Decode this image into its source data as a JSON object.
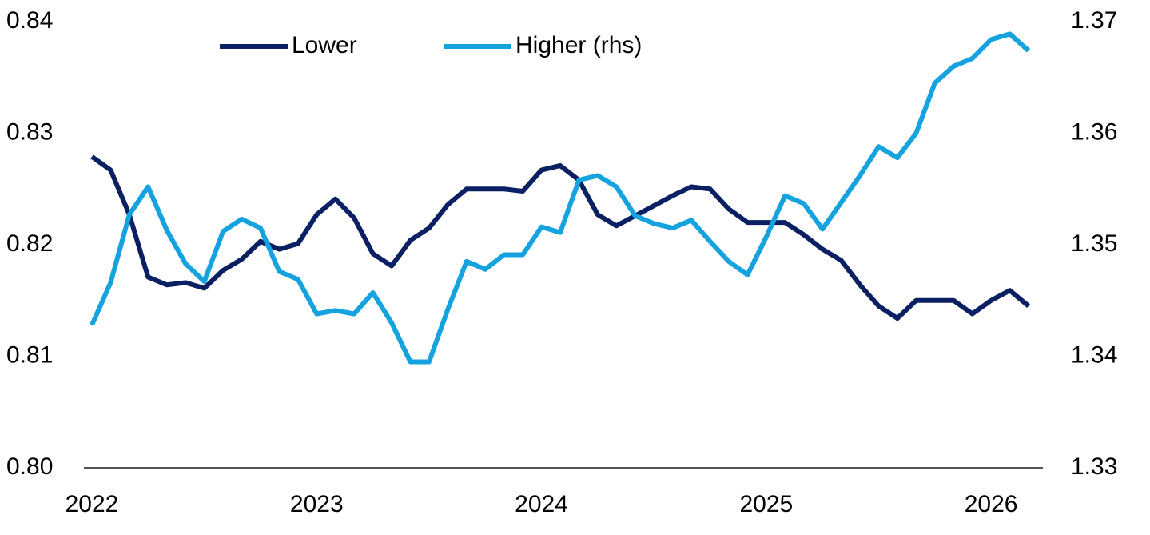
{
  "chart_data": {
    "type": "line",
    "categories": [
      "2022",
      null,
      null,
      null,
      null,
      null,
      null,
      null,
      null,
      null,
      null,
      null,
      "2023",
      null,
      null,
      null,
      null,
      null,
      null,
      null,
      null,
      null,
      null,
      null,
      "2024",
      null,
      null,
      null,
      null,
      null,
      null,
      null,
      null,
      null,
      null,
      null,
      "2025",
      null,
      null,
      null,
      null,
      null,
      null,
      null,
      null,
      null,
      null,
      null,
      "2026",
      null,
      null
    ],
    "ylim": [
      0.8,
      0.84
    ],
    "yticks": [
      {
        "value": 0.8,
        "label": "0.80"
      },
      0.81,
      0.82,
      0.83,
      0.84
    ],
    "y2lim": [
      1.33,
      1.37
    ],
    "y2ticks": [
      1.33,
      1.34,
      1.35,
      1.36,
      1.37
    ],
    "legend": "top",
    "series": [
      {
        "name": "Lower",
        "color": "#0b1f63",
        "values": [
          0.8279,
          0.8267,
          0.8227,
          0.8171,
          0.8164,
          0.8166,
          0.8161,
          0.8177,
          0.8187,
          0.8203,
          0.8196,
          0.8201,
          0.8227,
          0.8241,
          0.8224,
          0.8192,
          0.8181,
          0.8204,
          0.8215,
          0.8236,
          0.825,
          0.825,
          0.825,
          0.8248,
          0.8267,
          0.8271,
          0.8258,
          0.8227,
          0.8217,
          0.8226,
          0.8235,
          0.8244,
          0.8252,
          0.825,
          0.8232,
          0.822,
          0.822,
          0.822,
          0.8209,
          0.8196,
          0.8186,
          0.8164,
          0.8145,
          0.8134,
          0.815,
          0.815,
          0.815,
          0.8138,
          0.815,
          0.8159,
          0.8145
        ]
      },
      {
        "name": "Higher (rhs)",
        "color": "#15a3e0",
        "axis": "y2",
        "values": [
          1.3428,
          1.3466,
          1.3527,
          1.3552,
          1.3513,
          1.3483,
          1.3467,
          1.3512,
          1.3523,
          1.3515,
          1.3476,
          1.3469,
          1.3438,
          1.3441,
          1.3438,
          1.3457,
          1.343,
          1.3395,
          1.3395,
          1.3442,
          1.3485,
          1.3478,
          1.3491,
          1.3491,
          1.3516,
          1.3511,
          1.3558,
          1.3562,
          1.3552,
          1.3526,
          1.3519,
          1.3515,
          1.3522,
          1.3503,
          1.3485,
          1.3473,
          1.3507,
          1.3544,
          1.3537,
          1.3514,
          1.3538,
          1.3562,
          1.3588,
          1.3578,
          1.36,
          1.3645,
          1.366,
          1.3667,
          1.3684,
          1.3689,
          1.3674
        ]
      }
    ]
  }
}
